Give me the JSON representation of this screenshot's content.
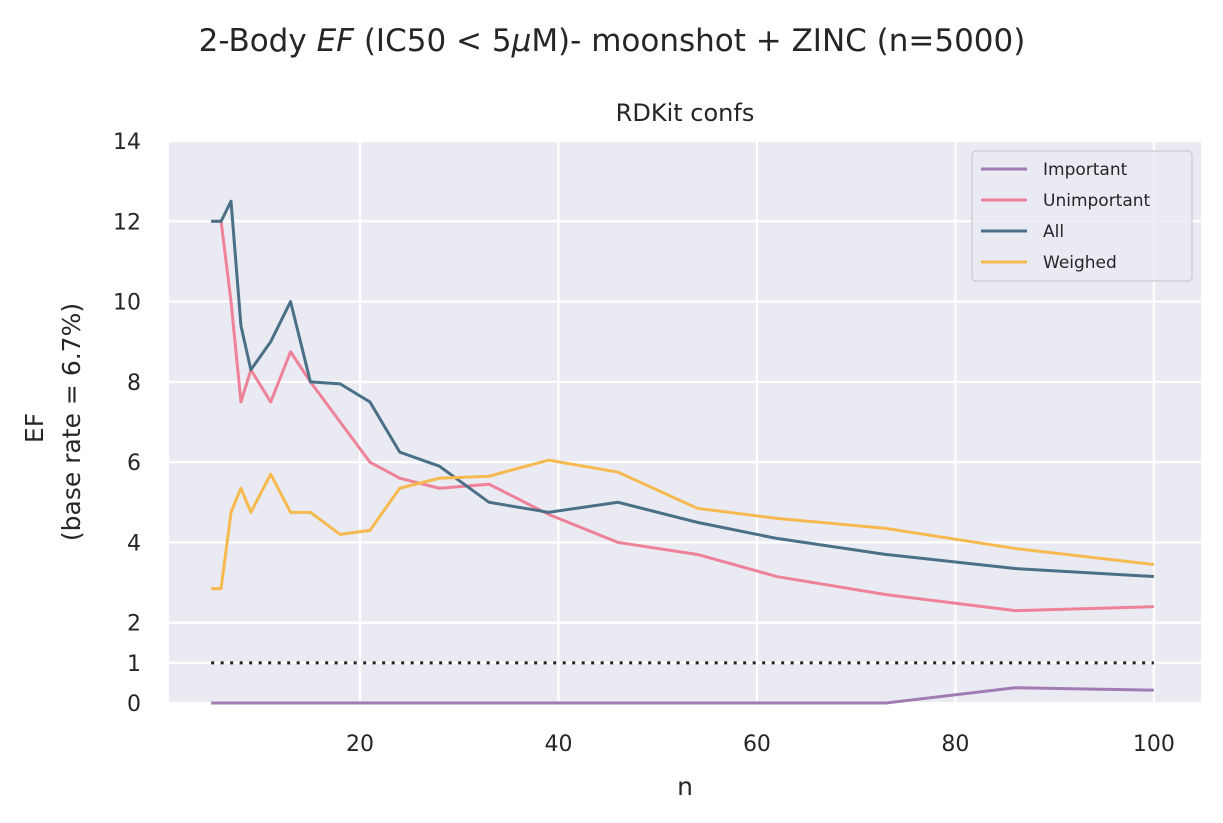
{
  "chart_data": {
    "type": "line",
    "suptitle": {
      "prefix": "2-Body ",
      "italic": "EF",
      "middle": " (IC50 < 5",
      "mu": "μ",
      "suffix": "M)- moonshot + ZINC (n=5000)"
    },
    "title": "RDKit confs",
    "xlabel": "n",
    "ylabel_line1": "EF",
    "ylabel_line2": "(base rate = 6.7%)",
    "xlim": [
      0.75,
      104.75
    ],
    "ylim": [
      0,
      14
    ],
    "xticks": [
      20,
      40,
      60,
      80,
      100
    ],
    "yticks": [
      0,
      1,
      2,
      4,
      6,
      8,
      10,
      12,
      14
    ],
    "baseline": {
      "y": 1,
      "style": "dotted",
      "color": "#222222"
    },
    "legend_position": "top-right",
    "series": [
      {
        "name": "Important",
        "color": "#a07cb3",
        "x": [
          5,
          6,
          7,
          8,
          9,
          11,
          13,
          15,
          18,
          21,
          24,
          28,
          33,
          39,
          46,
          54,
          62,
          73,
          86,
          100
        ],
        "y": [
          0,
          0,
          0,
          0,
          0,
          0,
          0,
          0,
          0,
          0,
          0,
          0,
          0,
          0,
          0,
          0,
          0,
          0,
          0.38,
          0.32
        ]
      },
      {
        "name": "Unimportant",
        "color": "#ee8298",
        "x": [
          5,
          6,
          7,
          8,
          9,
          11,
          13,
          15,
          18,
          21,
          24,
          28,
          33,
          39,
          46,
          54,
          62,
          73,
          86,
          100
        ],
        "y": [
          12.0,
          12.0,
          10.0,
          7.5,
          8.3,
          7.5,
          8.75,
          8.0,
          7.0,
          6.0,
          5.6,
          5.35,
          5.45,
          4.7,
          4.0,
          3.7,
          3.15,
          2.7,
          2.3,
          2.4
        ]
      },
      {
        "name": "All",
        "color": "#4a7088",
        "x": [
          5,
          6,
          7,
          8,
          9,
          11,
          13,
          15,
          18,
          21,
          24,
          28,
          33,
          39,
          46,
          54,
          62,
          73,
          86,
          100
        ],
        "y": [
          12.0,
          12.0,
          12.5,
          9.4,
          8.3,
          9.0,
          10.0,
          8.0,
          7.95,
          7.5,
          6.25,
          5.9,
          5.0,
          4.75,
          5.0,
          4.5,
          4.1,
          3.7,
          3.35,
          3.15
        ]
      },
      {
        "name": "Weighed",
        "color": "#f6b94f",
        "x": [
          5,
          6,
          7,
          8,
          9,
          11,
          13,
          15,
          18,
          21,
          24,
          28,
          33,
          39,
          46,
          54,
          62,
          73,
          86,
          100
        ],
        "y": [
          2.85,
          2.85,
          4.75,
          5.35,
          4.75,
          5.7,
          4.75,
          4.75,
          4.2,
          4.3,
          5.35,
          5.6,
          5.65,
          6.05,
          5.75,
          4.85,
          4.6,
          4.35,
          3.85,
          3.45
        ]
      }
    ]
  }
}
